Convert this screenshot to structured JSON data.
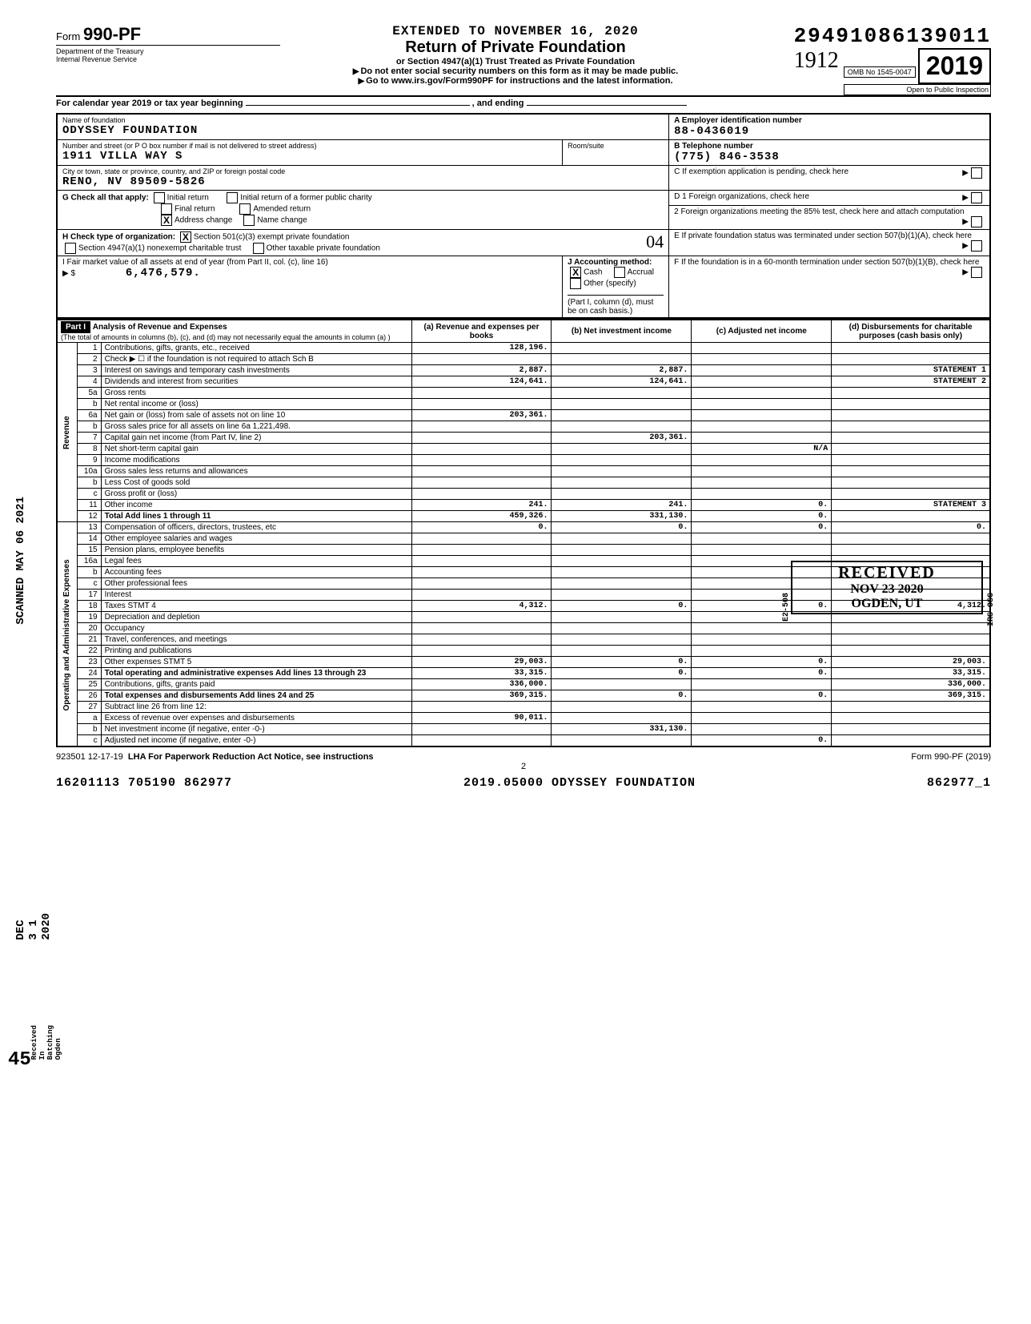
{
  "header": {
    "extended_line": "EXTENDED TO NOVEMBER 16, 2020",
    "form_label": "Form",
    "form_number": "990-PF",
    "dept1": "Department of the Treasury",
    "dept2": "Internal Revenue Service",
    "title": "Return of Private Foundation",
    "subtitle": "or Section 4947(a)(1) Trust Treated as Private Foundation",
    "warn1": "Do not enter social security numbers on this form as it may be made public.",
    "warn2": "Go to www.irs.gov/Form990PF for instructions and the latest information.",
    "top_number": "29491086139011",
    "omb": "OMB No  1545-0047",
    "year": "2019",
    "inspection": "Open to Public Inspection",
    "calendar_line": "For calendar year 2019 or tax year beginning",
    "and_ending": ", and ending"
  },
  "identity": {
    "name_label": "Name of foundation",
    "name": "ODYSSEY FOUNDATION",
    "addr_label": "Number and street (or P O  box number if mail is not delivered to street address)",
    "address": "1911 VILLA WAY S",
    "room_label": "Room/suite",
    "city_label": "City or town, state or province, country, and ZIP or foreign postal code",
    "city": "RENO, NV   89509-5826",
    "ein_label": "A  Employer identification number",
    "ein": "88-0436019",
    "tel_label": "B  Telephone number",
    "tel": "(775) 846-3538",
    "c_label": "C  If exemption application is pending, check here",
    "g_label": "G  Check all that apply:",
    "g_opts": [
      "Initial return",
      "Initial return of a former public charity",
      "Final return",
      "Amended return",
      "Address change",
      "Name change"
    ],
    "g_checked": "Address change",
    "h_label": "H  Check type of organization:",
    "h_opts": [
      "Section 501(c)(3) exempt private foundation",
      "Section 4947(a)(1) nonexempt charitable trust",
      "Other taxable private foundation"
    ],
    "h_checked": "Section 501(c)(3) exempt private foundation",
    "d1": "D  1  Foreign organizations, check here",
    "d2": "2  Foreign organizations meeting the 85% test, check here and attach computation",
    "e_label": "E  If private foundation status was terminated under section 507(b)(1)(A), check here",
    "f_label": "F  If the foundation is in a 60-month termination under section 507(b)(1)(B), check here",
    "i_label": "I  Fair market value of all assets at end of year (from Part II, col. (c), line 16)",
    "i_value": "6,476,579.",
    "j_label": "J  Accounting method:",
    "j_cash": "Cash",
    "j_accrual": "Accrual",
    "j_other": "Other (specify)",
    "j_note": "(Part I, column (d), must be on cash basis.)"
  },
  "part1": {
    "header": "Part I",
    "title": "Analysis of Revenue and Expenses",
    "title_note": "(The total of amounts in columns (b), (c), and (d) may not necessarily equal the amounts in column (a) )",
    "cols": {
      "a": "(a) Revenue and expenses per books",
      "b": "(b) Net investment income",
      "c": "(c) Adjusted net income",
      "d": "(d) Disbursements for charitable purposes (cash basis only)"
    },
    "section_revenue": "Revenue",
    "section_expenses": "Operating and Administrative Expenses",
    "rows": [
      {
        "n": "1",
        "label": "Contributions, gifts, grants, etc., received",
        "a": "128,196.",
        "b": "",
        "c": "",
        "d": ""
      },
      {
        "n": "2",
        "label": "Check ▶  ☐  if the foundation is not required to attach Sch  B",
        "a": "",
        "b": "",
        "c": "",
        "d": ""
      },
      {
        "n": "3",
        "label": "Interest on savings and temporary cash investments",
        "a": "2,887.",
        "b": "2,887.",
        "c": "",
        "d": "STATEMENT  1"
      },
      {
        "n": "4",
        "label": "Dividends and interest from securities",
        "a": "124,641.",
        "b": "124,641.",
        "c": "",
        "d": "STATEMENT  2"
      },
      {
        "n": "5a",
        "label": "Gross rents",
        "a": "",
        "b": "",
        "c": "",
        "d": ""
      },
      {
        "n": "b",
        "label": "Net rental income or (loss)",
        "a": "",
        "b": "",
        "c": "",
        "d": ""
      },
      {
        "n": "6a",
        "label": "Net gain or (loss) from sale of assets not on line 10",
        "a": "203,361.",
        "b": "",
        "c": "",
        "d": ""
      },
      {
        "n": "b",
        "label": "Gross sales price for all assets on line 6a   1,221,498.",
        "a": "",
        "b": "",
        "c": "",
        "d": ""
      },
      {
        "n": "7",
        "label": "Capital gain net income (from Part IV, line 2)",
        "a": "",
        "b": "203,361.",
        "c": "",
        "d": ""
      },
      {
        "n": "8",
        "label": "Net short-term capital gain",
        "a": "",
        "b": "",
        "c": "N/A",
        "d": ""
      },
      {
        "n": "9",
        "label": "Income modifications",
        "a": "",
        "b": "",
        "c": "",
        "d": ""
      },
      {
        "n": "10a",
        "label": "Gross sales less returns and allowances",
        "a": "",
        "b": "",
        "c": "",
        "d": ""
      },
      {
        "n": "b",
        "label": "Less  Cost of goods sold",
        "a": "",
        "b": "",
        "c": "",
        "d": ""
      },
      {
        "n": "c",
        "label": "Gross profit or (loss)",
        "a": "",
        "b": "",
        "c": "",
        "d": ""
      },
      {
        "n": "11",
        "label": "Other income",
        "a": "241.",
        "b": "241.",
        "c": "0.",
        "d": "STATEMENT  3"
      },
      {
        "n": "12",
        "label": "Total  Add lines 1 through 11",
        "a": "459,326.",
        "b": "331,130.",
        "c": "0.",
        "d": ""
      },
      {
        "n": "13",
        "label": "Compensation of officers, directors, trustees, etc",
        "a": "0.",
        "b": "0.",
        "c": "0.",
        "d": "0."
      },
      {
        "n": "14",
        "label": "Other employee salaries and wages",
        "a": "",
        "b": "",
        "c": "",
        "d": ""
      },
      {
        "n": "15",
        "label": "Pension plans, employee benefits",
        "a": "",
        "b": "",
        "c": "",
        "d": ""
      },
      {
        "n": "16a",
        "label": "Legal fees",
        "a": "",
        "b": "",
        "c": "",
        "d": ""
      },
      {
        "n": "b",
        "label": "Accounting fees",
        "a": "",
        "b": "",
        "c": "",
        "d": ""
      },
      {
        "n": "c",
        "label": "Other professional fees",
        "a": "",
        "b": "",
        "c": "",
        "d": ""
      },
      {
        "n": "17",
        "label": "Interest",
        "a": "",
        "b": "",
        "c": "",
        "d": ""
      },
      {
        "n": "18",
        "label": "Taxes                          STMT 4",
        "a": "4,312.",
        "b": "0.",
        "c": "0.",
        "d": "4,312."
      },
      {
        "n": "19",
        "label": "Depreciation and depletion",
        "a": "",
        "b": "",
        "c": "",
        "d": ""
      },
      {
        "n": "20",
        "label": "Occupancy",
        "a": "",
        "b": "",
        "c": "",
        "d": ""
      },
      {
        "n": "21",
        "label": "Travel, conferences, and meetings",
        "a": "",
        "b": "",
        "c": "",
        "d": ""
      },
      {
        "n": "22",
        "label": "Printing and publications",
        "a": "",
        "b": "",
        "c": "",
        "d": ""
      },
      {
        "n": "23",
        "label": "Other expenses              STMT 5",
        "a": "29,003.",
        "b": "0.",
        "c": "0.",
        "d": "29,003."
      },
      {
        "n": "24",
        "label": "Total operating and administrative expenses  Add lines 13 through 23",
        "a": "33,315.",
        "b": "0.",
        "c": "0.",
        "d": "33,315."
      },
      {
        "n": "25",
        "label": "Contributions, gifts, grants paid",
        "a": "336,000.",
        "b": "",
        "c": "",
        "d": "336,000."
      },
      {
        "n": "26",
        "label": "Total expenses and disbursements Add lines 24 and 25",
        "a": "369,315.",
        "b": "0.",
        "c": "0.",
        "d": "369,315."
      },
      {
        "n": "27",
        "label": "Subtract line 26 from line 12:",
        "a": "",
        "b": "",
        "c": "",
        "d": ""
      },
      {
        "n": "a",
        "label": "Excess of revenue over expenses and disbursements",
        "a": "90,011.",
        "b": "",
        "c": "",
        "d": ""
      },
      {
        "n": "b",
        "label": "Net investment income (if negative, enter -0-)",
        "a": "",
        "b": "331,130.",
        "c": "",
        "d": ""
      },
      {
        "n": "c",
        "label": "Adjusted net income (if negative, enter -0-)",
        "a": "",
        "b": "",
        "c": "0.",
        "d": ""
      }
    ]
  },
  "stamps": {
    "scanned": "SCANNED MAY 06 2021",
    "dec": "DEC 3 1 2020",
    "received_in": "Received In Batching Ogden",
    "side_45": "45",
    "received_box": "RECEIVED",
    "received_date": "NOV 23 2020",
    "received_loc": "OGDEN, UT",
    "e2508": "E2-508",
    "irs_osc": "IRS-OSC",
    "handwritten_04": "04",
    "handwritten_1912": "1912"
  },
  "footer": {
    "code": "923501  12-17-19",
    "lha": "LHA  For Paperwork Reduction Act Notice, see instructions",
    "form_ref": "Form 990-PF (2019)",
    "page": "2",
    "bottom_left": "16201113 705190 862977",
    "bottom_center": "2019.05000 ODYSSEY FOUNDATION",
    "bottom_right": "862977_1"
  },
  "colors": {
    "text": "#000000",
    "bg": "#ffffff",
    "shade": "#e0e0e0"
  }
}
